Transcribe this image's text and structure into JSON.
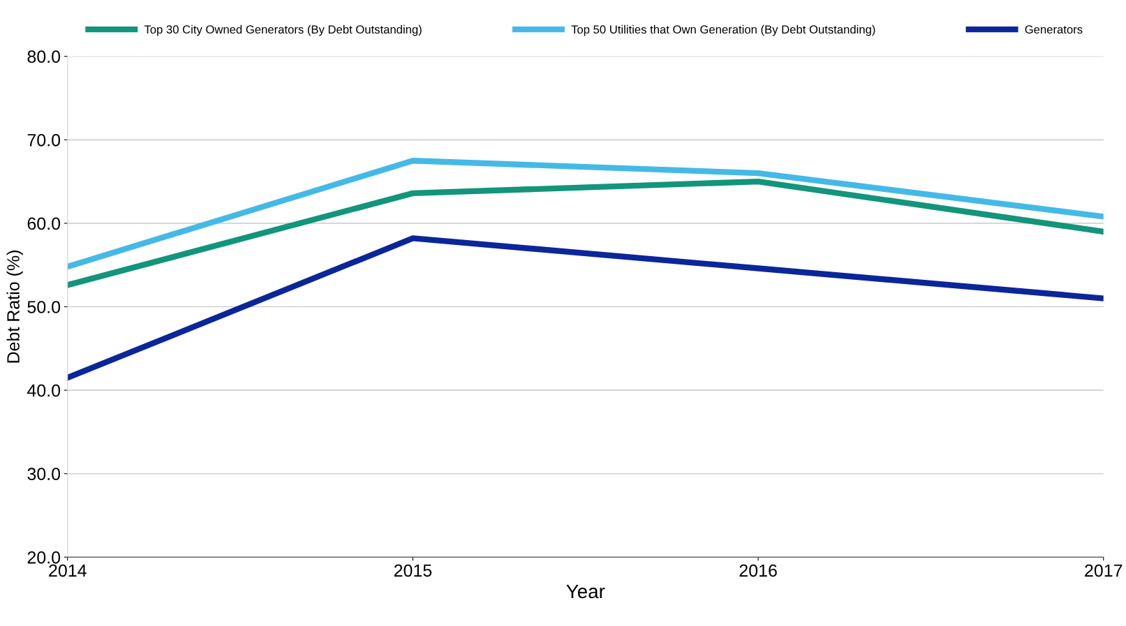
{
  "chart_data": {
    "type": "line",
    "xlabel": "Year",
    "ylabel": "Debt Ratio (%)",
    "x": [
      2014,
      2015,
      2016,
      2017
    ],
    "series": [
      {
        "name": "Top 30 City Owned Generators (By Debt Outstanding)",
        "color": "#12957a",
        "values": [
          52.6,
          63.6,
          65.0,
          59.0
        ]
      },
      {
        "name": "Top 50 Utilities that Own Generation (By Debt Outstanding)",
        "color": "#45b9e6",
        "values": [
          54.8,
          67.5,
          66.0,
          60.8
        ]
      },
      {
        "name": "Generators",
        "color": "#0a2699",
        "values": [
          41.5,
          58.2,
          54.6,
          51.0
        ]
      }
    ],
    "xlim": [
      2014,
      2017
    ],
    "xticks": [
      2014,
      2015,
      2016,
      2017
    ],
    "ylim": [
      20,
      80
    ],
    "yticks": [
      {
        "value": 20,
        "label": "20.0"
      },
      {
        "value": 30,
        "label": "30.0"
      },
      {
        "value": 40,
        "label": "40.0"
      },
      {
        "value": 50,
        "label": "50.0"
      },
      {
        "value": 60,
        "label": "60.0"
      },
      {
        "value": 70,
        "label": "70.0"
      },
      {
        "value": 80,
        "label": "80.0"
      }
    ],
    "grid": "y",
    "legend": "top",
    "marker": "none",
    "line_style": "solid"
  }
}
